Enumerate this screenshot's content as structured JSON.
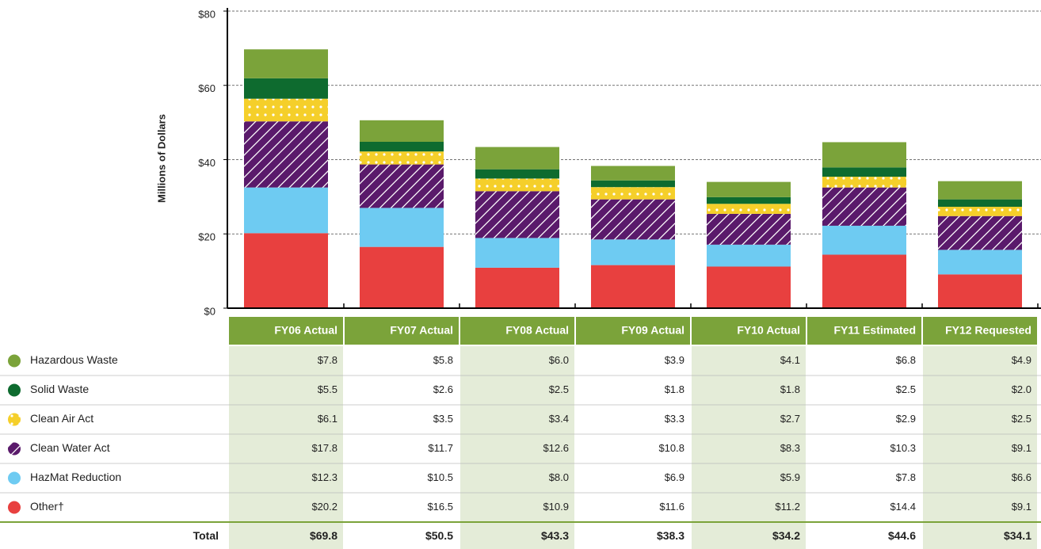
{
  "chart_data": {
    "type": "stacked_bar",
    "y_axis_label": "Millions of Dollars",
    "categories": [
      "FY06 Actual",
      "FY07 Actual",
      "FY08 Actual",
      "FY09 Actual",
      "FY10 Actual",
      "FY11 Estimated",
      "FY12 Requested"
    ],
    "series": [
      {
        "name": "Hazardous Waste",
        "color": "#7ba33a",
        "pattern": "solid",
        "values": [
          7.8,
          5.8,
          6.0,
          3.9,
          4.1,
          6.8,
          4.9
        ],
        "value_labels": [
          "$7.8",
          "$5.8",
          "$6.0",
          "$3.9",
          "$4.1",
          "$6.8",
          "$4.9"
        ]
      },
      {
        "name": "Solid Waste",
        "color": "#0e6b2f",
        "pattern": "solid",
        "values": [
          5.5,
          2.6,
          2.5,
          1.8,
          1.8,
          2.5,
          2.0
        ],
        "value_labels": [
          "$5.5",
          "$2.6",
          "$2.5",
          "$1.8",
          "$1.8",
          "$2.5",
          "$2.0"
        ]
      },
      {
        "name": "Clean Air Act",
        "color": "#f5cf2a",
        "pattern": "dots",
        "values": [
          6.1,
          3.5,
          3.4,
          3.3,
          2.7,
          2.9,
          2.5
        ],
        "value_labels": [
          "$6.1",
          "$3.5",
          "$3.4",
          "$3.3",
          "$2.7",
          "$2.9",
          "$2.5"
        ]
      },
      {
        "name": "Clean Water Act",
        "color": "#5a1a6b",
        "pattern": "stripes",
        "values": [
          17.8,
          11.7,
          12.6,
          10.8,
          8.3,
          10.3,
          9.1
        ],
        "value_labels": [
          "$17.8",
          "$11.7",
          "$12.6",
          "$10.8",
          "$8.3",
          "$10.3",
          "$9.1"
        ]
      },
      {
        "name": "HazMat Reduction",
        "color": "#6ecbf2",
        "pattern": "solid",
        "values": [
          12.3,
          10.5,
          8.0,
          6.9,
          5.9,
          7.8,
          6.6
        ],
        "value_labels": [
          "$12.3",
          "$10.5",
          "$8.0",
          "$6.9",
          "$5.9",
          "$7.8",
          "$6.6"
        ]
      },
      {
        "name": "Other†",
        "color": "#e8403f",
        "pattern": "solid",
        "values": [
          20.2,
          16.5,
          10.9,
          11.6,
          11.2,
          14.4,
          9.1
        ],
        "value_labels": [
          "$20.2",
          "$16.5",
          "$10.9",
          "$11.6",
          "$11.2",
          "$14.4",
          "$9.1"
        ]
      }
    ],
    "total_label": "Total",
    "totals": {
      "values": [
        69.8,
        50.5,
        43.3,
        38.3,
        34.2,
        44.6,
        34.1
      ],
      "value_labels": [
        "$69.8",
        "$50.5",
        "$43.3",
        "$38.3",
        "$34.2",
        "$44.6",
        "$34.1"
      ]
    },
    "ylim": [
      0,
      80
    ],
    "yticks": [
      {
        "value": 0,
        "label": "$0"
      },
      {
        "value": 20,
        "label": "$20"
      },
      {
        "value": 40,
        "label": "$40"
      },
      {
        "value": 60,
        "label": "$60"
      },
      {
        "value": 80,
        "label": "$80"
      }
    ],
    "grid": true
  }
}
